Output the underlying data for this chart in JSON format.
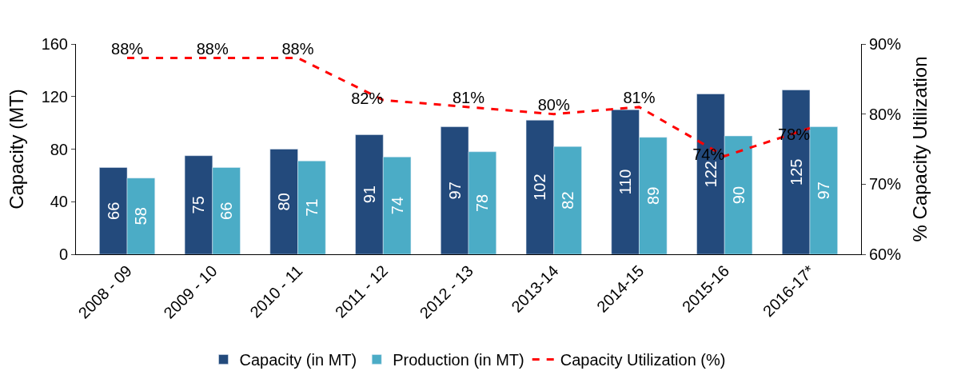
{
  "chart_data": {
    "type": "bar",
    "ylabel": "Capacity (MT)",
    "y2label": "% Capacity Utilization",
    "categories": [
      "2008 - 09",
      "2009 - 10",
      "2010 - 11",
      "2011 - 12",
      "2012 - 13",
      "2013-14",
      "2014-15",
      "2015-16",
      "2016-17*"
    ],
    "series": [
      {
        "name": "Capacity (in MT)",
        "color": "#234a7c",
        "values": [
          66,
          75,
          80,
          91,
          97,
          102,
          110,
          122,
          125
        ],
        "value_labels": [
          "66",
          "75",
          "80",
          "91",
          "97",
          "102",
          "110",
          "122",
          "125"
        ]
      },
      {
        "name": "Production (in MT)",
        "color": "#4bacc6",
        "values": [
          58,
          66,
          71,
          74,
          78,
          82,
          89,
          90,
          97
        ],
        "value_labels": [
          "58",
          "66",
          "71",
          "74",
          "78",
          "82",
          "89",
          "90",
          "97"
        ]
      },
      {
        "name": "Capacity Utilization (%)",
        "type": "line",
        "axis": "y2",
        "color": "#ff0000",
        "line_style": "dashed",
        "marker": "none",
        "values": [
          88,
          88,
          88,
          82,
          81,
          80,
          81,
          74,
          78
        ],
        "value_labels": [
          "88%",
          "88%",
          "88%",
          "82%",
          "81%",
          "80%",
          "81%",
          "74%",
          "78%"
        ]
      }
    ],
    "ylim": [
      0,
      160
    ],
    "yticks": [
      0,
      40,
      80,
      120,
      160
    ],
    "y2lim": [
      60,
      90
    ],
    "y2ticks": [
      {
        "value": 60,
        "label": "60%"
      },
      {
        "value": 70,
        "label": "70%"
      },
      {
        "value": 80,
        "label": "80%"
      },
      {
        "value": 90,
        "label": "90%"
      }
    ],
    "legend": "bottom"
  }
}
